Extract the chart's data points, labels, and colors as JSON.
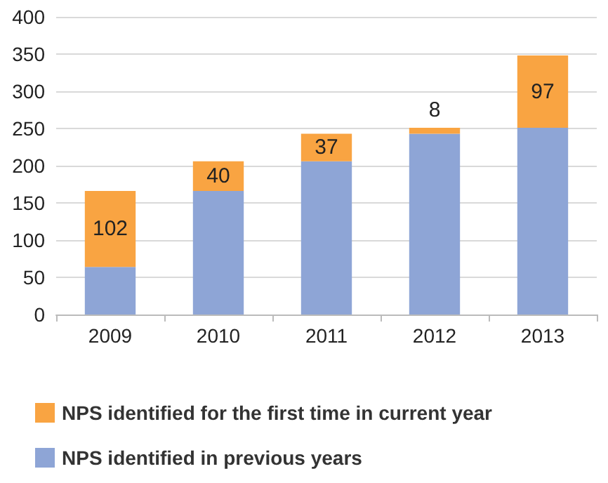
{
  "chart_data": {
    "type": "bar",
    "stacked": true,
    "categories": [
      "2009",
      "2010",
      "2011",
      "2012",
      "2013"
    ],
    "series": [
      {
        "name": "NPS identified in previous years",
        "color": "#8ea5d6",
        "values": [
          64,
          166,
          206,
          243,
          251
        ]
      },
      {
        "name": "NPS identified for the first time in current year",
        "color": "#f9a442",
        "values": [
          102,
          40,
          37,
          8,
          97
        ],
        "value_labels": [
          "102",
          "40",
          "37",
          "8",
          "97"
        ]
      }
    ],
    "ylim": [
      0,
      400
    ],
    "yticks": [
      0,
      50,
      100,
      150,
      200,
      250,
      300,
      350,
      400
    ],
    "grid": "y",
    "legend": "bottom"
  }
}
